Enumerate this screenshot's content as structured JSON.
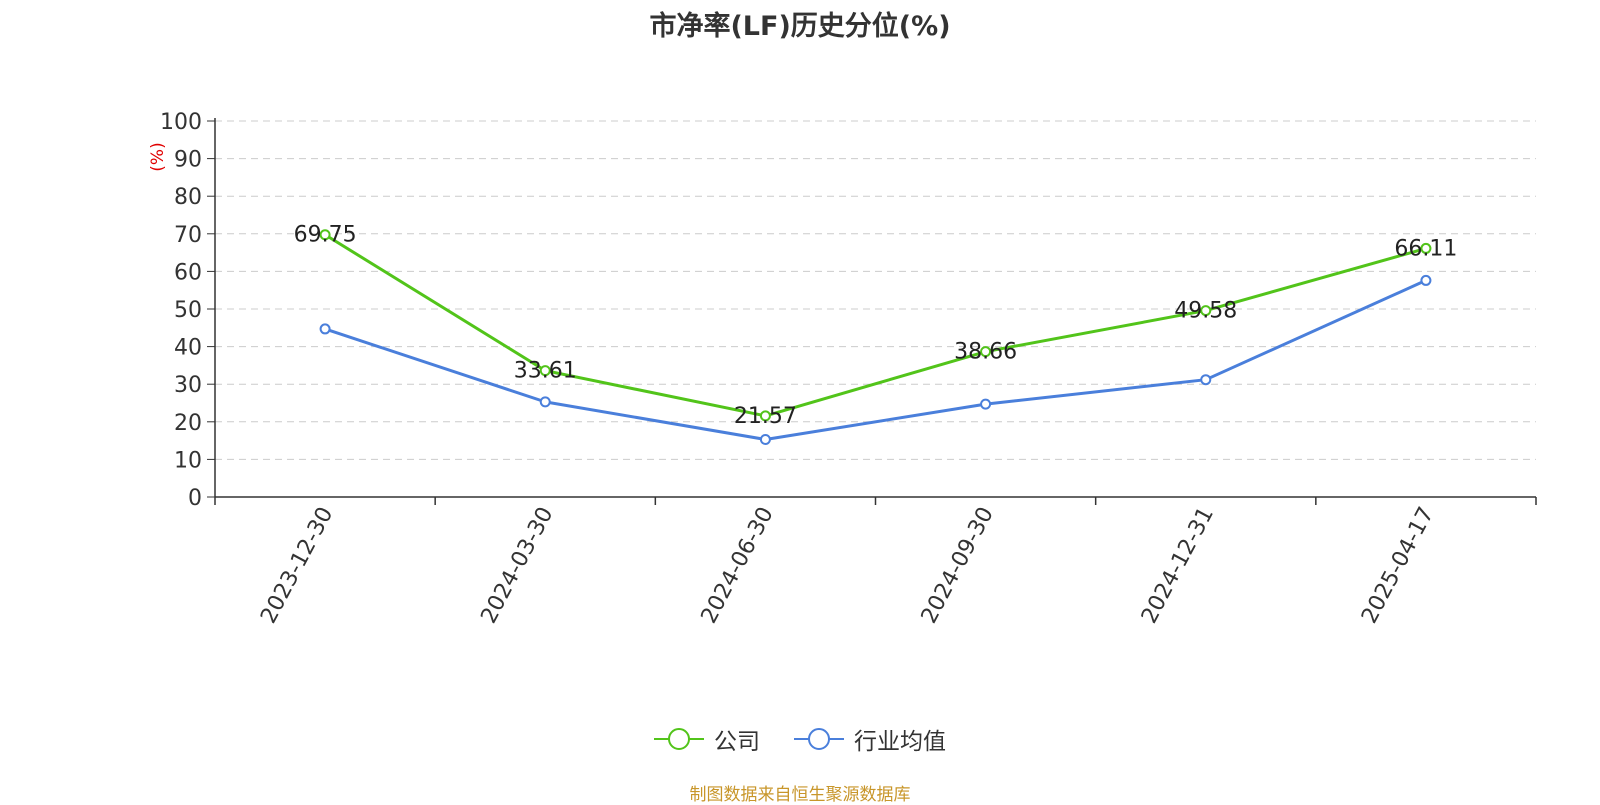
{
  "chart_data": {
    "type": "line",
    "title": "市净率(LF)历史分位(%)",
    "ylabel": "(%)",
    "categories": [
      "2023-12-30",
      "2024-03-30",
      "2024-06-30",
      "2024-09-30",
      "2024-12-31",
      "2025-04-17"
    ],
    "ylim": [
      0,
      100
    ],
    "yticks": [
      0,
      10,
      20,
      30,
      40,
      50,
      60,
      70,
      80,
      90,
      100
    ],
    "grid": true,
    "legend_position": "bottom",
    "series": [
      {
        "name": "公司",
        "color": "#52c41a",
        "values": [
          69.75,
          33.61,
          21.57,
          38.66,
          49.58,
          66.11
        ],
        "show_labels": true
      },
      {
        "name": "行业均值",
        "color": "#4a7fdb",
        "values": [
          44.7,
          25.3,
          15.3,
          24.7,
          31.2,
          57.6
        ],
        "show_labels": false
      }
    ]
  },
  "footer": {
    "source": "制图数据来自恒生聚源数据库"
  }
}
